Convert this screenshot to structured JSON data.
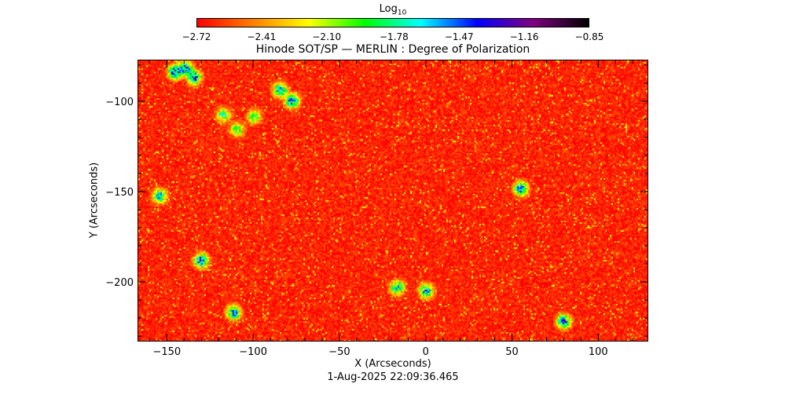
{
  "colorbar": {
    "label_base": "Log",
    "label_sub": "10",
    "ticks": [
      "−2.72",
      "−2.41",
      "−2.10",
      "−1.78",
      "−1.47",
      "−1.16",
      "−0.85"
    ],
    "tick_values": [
      -2.72,
      -2.41,
      -2.1,
      -1.78,
      -1.47,
      -1.16,
      -0.85
    ],
    "colormap": [
      "#ff0000",
      "#ff8000",
      "#ffff00",
      "#00ff00",
      "#00ffff",
      "#0000ff",
      "#800080",
      "#000000"
    ]
  },
  "chart_data": {
    "type": "heatmap",
    "title": "Hinode SOT/SP — MERLIN : Degree of Polarization",
    "xlabel": "X (Arcseconds)",
    "ylabel": "Y (Arcseconds)",
    "xlim": [
      -167,
      129
    ],
    "ylim": [
      -233,
      -77
    ],
    "xticks": [
      -150,
      -100,
      -50,
      0,
      50,
      100
    ],
    "yticks": [
      -100,
      -150,
      -200
    ],
    "value_range": [
      -2.72,
      -0.85
    ],
    "dominant_value": -2.65,
    "enhanced_regions": [
      {
        "x": -146,
        "y": -83,
        "value": -1.2
      },
      {
        "x": -140,
        "y": -81,
        "value": -1.2
      },
      {
        "x": -135,
        "y": -86,
        "value": -1.3
      },
      {
        "x": -118,
        "y": -107,
        "value": -1.7
      },
      {
        "x": -110,
        "y": -115,
        "value": -1.8
      },
      {
        "x": -100,
        "y": -108,
        "value": -1.8
      },
      {
        "x": -85,
        "y": -93,
        "value": -1.4
      },
      {
        "x": -78,
        "y": -99,
        "value": -1.3
      },
      {
        "x": -155,
        "y": -152,
        "value": -1.5
      },
      {
        "x": -131,
        "y": -188,
        "value": -1.3
      },
      {
        "x": -112,
        "y": -217,
        "value": -1.4
      },
      {
        "x": 55,
        "y": -148,
        "value": -1.3
      },
      {
        "x": 80,
        "y": -222,
        "value": -1.3
      },
      {
        "x": -17,
        "y": -203,
        "value": -1.5
      },
      {
        "x": 0,
        "y": -205,
        "value": -1.4
      }
    ]
  },
  "footer": {
    "timestamp": "1-Aug-2025 22:09:36.465"
  }
}
